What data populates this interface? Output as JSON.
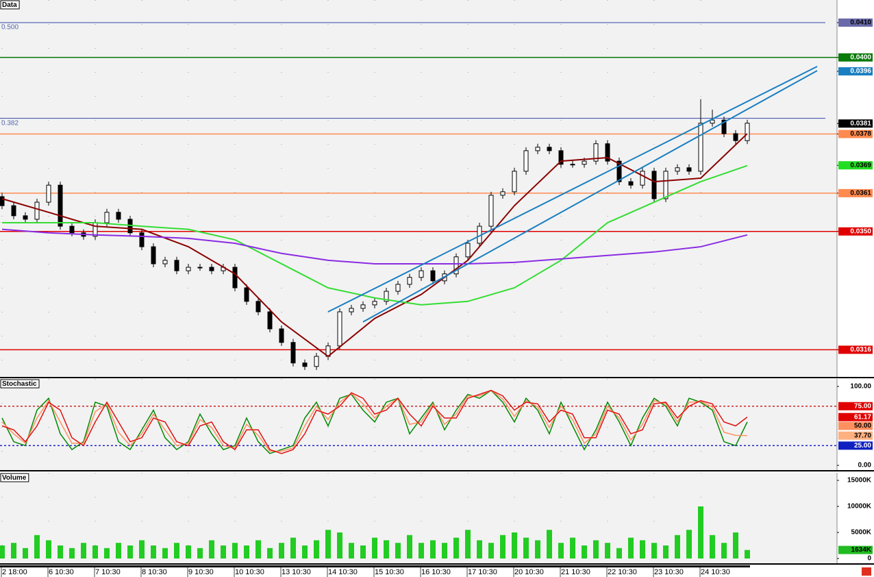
{
  "chart_data": [
    {
      "type": "candlestick",
      "title": "Data",
      "open": [
        0.036,
        0.03574,
        0.03545,
        0.03535,
        0.03584,
        0.03633,
        0.03515,
        0.03496,
        0.03486,
        0.03525,
        0.03555,
        0.03535,
        0.03496,
        0.03456,
        0.03407,
        0.03417,
        0.03387,
        0.03397,
        0.03397,
        0.03387,
        0.03397,
        0.03338,
        0.03299,
        0.03269,
        0.0322,
        0.03181,
        0.03122,
        0.03112,
        0.03141,
        0.03171,
        0.03269,
        0.03279,
        0.03289,
        0.03299,
        0.03328,
        0.03348,
        0.03368,
        0.03387,
        0.03358,
        0.03378,
        0.03427,
        0.03466,
        0.03515,
        0.03604,
        0.03614,
        0.03673,
        0.03732,
        0.03742,
        0.03732,
        0.03693,
        0.03693,
        0.03702,
        0.03752,
        0.03702,
        0.03643,
        0.03633,
        0.03673,
        0.03594,
        0.03673,
        0.03683,
        0.03673,
        0.03811,
        0.0382,
        0.03781,
        0.03761
      ],
      "high": [
        0.0361,
        0.03584,
        0.03555,
        0.03594,
        0.03643,
        0.03643,
        0.03525,
        0.03506,
        0.03535,
        0.03565,
        0.03565,
        0.03545,
        0.03506,
        0.03466,
        0.03427,
        0.03427,
        0.03407,
        0.03407,
        0.03407,
        0.03407,
        0.03407,
        0.03348,
        0.03309,
        0.03279,
        0.0323,
        0.03191,
        0.03132,
        0.03151,
        0.03181,
        0.03279,
        0.03289,
        0.03299,
        0.03309,
        0.03338,
        0.03358,
        0.03378,
        0.03397,
        0.03397,
        0.03388,
        0.03437,
        0.03476,
        0.03525,
        0.03614,
        0.03624,
        0.03683,
        0.03742,
        0.03752,
        0.03752,
        0.03742,
        0.03703,
        0.03712,
        0.03762,
        0.03762,
        0.03712,
        0.03653,
        0.03683,
        0.03683,
        0.03683,
        0.03693,
        0.03693,
        0.0388,
        0.0385,
        0.0383,
        0.03791,
        0.03821
      ],
      "low": [
        0.03564,
        0.03535,
        0.03525,
        0.03525,
        0.03574,
        0.03505,
        0.03486,
        0.03476,
        0.03476,
        0.03515,
        0.03525,
        0.03486,
        0.03446,
        0.03397,
        0.03397,
        0.03377,
        0.03377,
        0.03387,
        0.03377,
        0.03377,
        0.03328,
        0.03289,
        0.03259,
        0.0321,
        0.03171,
        0.03112,
        0.03102,
        0.03102,
        0.03131,
        0.03161,
        0.03259,
        0.03269,
        0.03279,
        0.03289,
        0.03318,
        0.03338,
        0.03358,
        0.03348,
        0.03348,
        0.03368,
        0.03417,
        0.03456,
        0.03505,
        0.03594,
        0.03604,
        0.03663,
        0.03722,
        0.03722,
        0.03683,
        0.03683,
        0.03683,
        0.03692,
        0.03692,
        0.03633,
        0.03623,
        0.03623,
        0.03584,
        0.03584,
        0.03663,
        0.03663,
        0.03663,
        0.03801,
        0.03771,
        0.03751,
        0.03751
      ],
      "close": [
        0.03574,
        0.03545,
        0.03535,
        0.03584,
        0.03633,
        0.03515,
        0.03496,
        0.03486,
        0.03525,
        0.03555,
        0.03535,
        0.03496,
        0.03456,
        0.03407,
        0.03417,
        0.03387,
        0.03397,
        0.03397,
        0.03387,
        0.03397,
        0.03338,
        0.03299,
        0.03269,
        0.0322,
        0.03181,
        0.03122,
        0.03112,
        0.03141,
        0.03171,
        0.03269,
        0.03279,
        0.03289,
        0.03299,
        0.03328,
        0.03348,
        0.03368,
        0.03387,
        0.03358,
        0.03378,
        0.03427,
        0.03466,
        0.03515,
        0.03604,
        0.03614,
        0.03673,
        0.03732,
        0.03742,
        0.03732,
        0.03693,
        0.03693,
        0.03702,
        0.03752,
        0.03702,
        0.03643,
        0.03633,
        0.03673,
        0.03594,
        0.03673,
        0.03683,
        0.03673,
        0.03811,
        0.0382,
        0.03781,
        0.03761,
        0.03811
      ],
      "ylim": [
        0.03082,
        0.04165
      ],
      "yticks": [
        {
          "value": 0.041,
          "label": "0.0410"
        },
        {
          "value": 0.04,
          "label": "0.0400"
        },
        {
          "value": 0.0396,
          "label": "0.0396"
        },
        {
          "value": 0.0381,
          "label": "0.0381"
        },
        {
          "value": 0.0378,
          "label": "0.0378"
        },
        {
          "value": 0.0369,
          "label": "0.0369"
        },
        {
          "value": 0.0361,
          "label": "0.0361"
        },
        {
          "value": 0.035,
          "label": "0.0350"
        },
        {
          "value": 0.0316,
          "label": "0.0316"
        }
      ],
      "ytick_colors": [
        "#6a6aaa",
        "#0a7a0a",
        "#1a7fc0",
        "#000000",
        "#ff8a50",
        "#22dd22",
        "#ff8a50",
        "#e00000",
        "#e00000"
      ],
      "hlines": [
        {
          "value": 0.041,
          "color": "#3344aa",
          "label": "0.500"
        },
        {
          "value": 0.04,
          "color": "#0a7a0a"
        },
        {
          "value": 0.03825,
          "color": "#3344aa",
          "label": "0.382"
        },
        {
          "value": 0.0378,
          "color": "#ff8a50"
        },
        {
          "value": 0.0361,
          "color": "#ff8a50"
        },
        {
          "value": 0.035,
          "color": "#e00000"
        },
        {
          "value": 0.0316,
          "color": "#e00000"
        }
      ],
      "overlays": [
        {
          "color": "#8b0000",
          "x": [
            0,
            4,
            8,
            12,
            16,
            20,
            24,
            28,
            32,
            36,
            40,
            44,
            48,
            52,
            56,
            60,
            64
          ],
          "values": [
            0.03594,
            0.03555,
            0.03515,
            0.03506,
            0.03456,
            0.03378,
            0.0324,
            0.03141,
            0.0325,
            0.03319,
            0.03417,
            0.03574,
            0.03702,
            0.03712,
            0.03643,
            0.03653,
            0.03781
          ]
        },
        {
          "color": "#33dd33",
          "x": [
            0,
            4,
            8,
            12,
            16,
            20,
            24,
            28,
            32,
            36,
            40,
            44,
            48,
            52,
            56,
            60,
            64
          ],
          "values": [
            0.03525,
            0.03525,
            0.03525,
            0.03515,
            0.03506,
            0.03476,
            0.03407,
            0.03338,
            0.03309,
            0.03289,
            0.03299,
            0.03338,
            0.03417,
            0.03525,
            0.03584,
            0.03643,
            0.03689
          ]
        },
        {
          "color": "#8a2be2",
          "x": [
            0,
            4,
            8,
            12,
            16,
            20,
            24,
            28,
            32,
            36,
            40,
            44,
            48,
            52,
            56,
            60,
            64
          ],
          "values": [
            0.03506,
            0.03496,
            0.0349,
            0.03486,
            0.0348,
            0.03466,
            0.03437,
            0.03417,
            0.03407,
            0.03407,
            0.03407,
            0.03411,
            0.03421,
            0.03431,
            0.03441,
            0.03456,
            0.0349
          ]
        }
      ],
      "trendlines": [
        {
          "color": "#1a7fc0",
          "x": [
            28,
            70
          ],
          "values": [
            0.03269,
            0.03974
          ]
        },
        {
          "color": "#1a7fc0",
          "x": [
            31,
            70
          ],
          "values": [
            0.0324,
            0.03962
          ]
        }
      ]
    },
    {
      "type": "line",
      "title": "Stochastic",
      "series": [
        {
          "color": "#008800",
          "values": [
            60,
            30,
            25,
            70,
            85,
            40,
            20,
            30,
            80,
            75,
            30,
            20,
            45,
            70,
            35,
            20,
            30,
            65,
            40,
            20,
            25,
            60,
            30,
            15,
            20,
            25,
            60,
            80,
            50,
            85,
            90,
            70,
            55,
            80,
            85,
            40,
            60,
            80,
            45,
            70,
            90,
            85,
            95,
            80,
            55,
            85,
            70,
            40,
            80,
            50,
            20,
            45,
            80,
            55,
            25,
            60,
            85,
            75,
            50,
            85,
            80,
            70,
            30,
            25,
            55
          ]
        },
        {
          "color": "#ff9060",
          "values": [
            55,
            40,
            28,
            60,
            82,
            55,
            28,
            28,
            68,
            78,
            42,
            25,
            40,
            65,
            45,
            25,
            28,
            58,
            48,
            25,
            22,
            52,
            38,
            18,
            18,
            22,
            50,
            75,
            58,
            80,
            91,
            78,
            60,
            75,
            85,
            52,
            55,
            78,
            52,
            65,
            88,
            88,
            95,
            84,
            62,
            82,
            74,
            48,
            75,
            58,
            28,
            40,
            75,
            60,
            32,
            52,
            82,
            78,
            55,
            80,
            81,
            74,
            42,
            38,
            37.7
          ]
        },
        {
          "color": "#e01010",
          "values": [
            50,
            45,
            30,
            50,
            80,
            70,
            35,
            25,
            55,
            80,
            55,
            30,
            35,
            60,
            55,
            30,
            25,
            50,
            55,
            30,
            20,
            45,
            45,
            20,
            15,
            20,
            40,
            70,
            65,
            75,
            92,
            85,
            65,
            70,
            85,
            65,
            50,
            75,
            60,
            60,
            85,
            90,
            95,
            88,
            70,
            80,
            78,
            55,
            70,
            65,
            35,
            35,
            70,
            65,
            40,
            45,
            78,
            80,
            60,
            75,
            82,
            78,
            55,
            50,
            61.17
          ]
        }
      ],
      "ylim": [
        -6,
        109.5
      ],
      "yticks": [
        {
          "value": 100,
          "label": "100.00"
        },
        {
          "value": 0,
          "label": "0.00"
        }
      ],
      "hlines": [
        {
          "value": 75,
          "color": "#cc2222",
          "dash": true
        },
        {
          "value": 25,
          "color": "#2222cc",
          "dash": true
        }
      ],
      "tags": [
        {
          "value": 75,
          "label": "75.00",
          "color": "#e00000"
        },
        {
          "value": 61.17,
          "label": "61.17",
          "color": "#e00000"
        },
        {
          "value": 50,
          "label": "50.00",
          "color": "#ff9060"
        },
        {
          "value": 37.7,
          "label": "37.70",
          "color": "#ffb080"
        },
        {
          "value": 25,
          "label": "25.00",
          "color": "#1020c0"
        }
      ]
    },
    {
      "type": "bar",
      "title": "Volume",
      "categories": [
        "2 18:00",
        null,
        null,
        null,
        "6 10:30",
        null,
        null,
        null,
        "7 10:30",
        null,
        null,
        null,
        "8 10:30",
        null,
        null,
        null,
        "9 10:30",
        null,
        null,
        null,
        "10 10:30",
        null,
        null,
        null,
        "13 10:30",
        null,
        null,
        null,
        "14 10:30",
        null,
        null,
        null,
        "15 10:30",
        null,
        null,
        null,
        "16 10:30",
        null,
        null,
        null,
        "17 10:30",
        null,
        null,
        null,
        "20 10:30",
        null,
        null,
        null,
        "21 10:30",
        null,
        null,
        null,
        "22 10:30",
        null,
        null,
        null,
        "23 10:30",
        null,
        null,
        null,
        "24 10:30",
        null,
        null,
        null,
        null
      ],
      "values": [
        2500,
        3000,
        2000,
        4500,
        3500,
        2500,
        2000,
        3000,
        2500,
        2000,
        3000,
        2500,
        3500,
        2500,
        2000,
        3000,
        2500,
        2000,
        3500,
        2500,
        3000,
        2500,
        3500,
        2000,
        3000,
        4000,
        2500,
        3500,
        5500,
        5000,
        3000,
        2500,
        4000,
        3500,
        3000,
        4500,
        3000,
        3500,
        3000,
        4000,
        5500,
        3500,
        3000,
        4500,
        5000,
        4000,
        3500,
        5500,
        3000,
        4000,
        2500,
        3500,
        3000,
        2000,
        4000,
        3500,
        3000,
        2500,
        4500,
        5500,
        10000,
        4500,
        3000,
        5000,
        1634
      ],
      "color": "#22cc22",
      "ylim": [
        -921,
        16447
      ],
      "yticks": [
        {
          "value": 15000,
          "label": "15000K"
        },
        {
          "value": 10000,
          "label": "10000K"
        },
        {
          "value": 5000,
          "label": "5000K"
        },
        0
      ],
      "tags": [
        {
          "value": 1634,
          "label": "1634K",
          "color": "#22bb22"
        }
      ]
    }
  ]
}
